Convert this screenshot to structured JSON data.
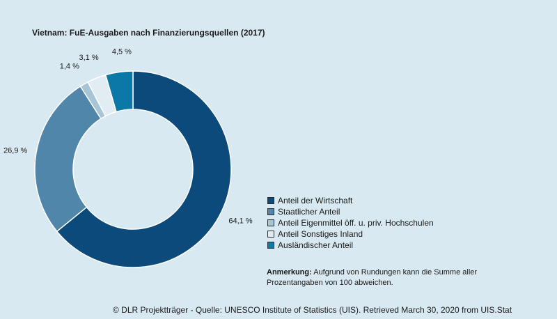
{
  "chart_data": {
    "type": "donut",
    "title": "Vietnam: FuE-Ausgaben nach Finanzierungsquellen (2017)",
    "categories": [
      "Anteil der Wirtschaft",
      "Staatlicher Anteil",
      "Anteil Eigenmittel öff. u. priv. Hochschulen",
      "Anteil Sonstiges Inland",
      "Ausländischer Anteil"
    ],
    "values": [
      64.1,
      26.9,
      1.4,
      3.1,
      4.5
    ],
    "value_labels": [
      "64,1 %",
      "26,9 %",
      "1,4 %",
      "3,1 %",
      "4,5 %"
    ],
    "colors": [
      "#0d4a7c",
      "#4f86aa",
      "#a6c5d6",
      "#e2edf3",
      "#0b78a8"
    ],
    "legend_position": "right"
  },
  "note": {
    "label": "Anmerkung:",
    "text": " Aufgrund von Rundungen kann die Summe aller Prozentangaben von 100 abweichen."
  },
  "source": "© DLR Projektträger - Quelle: UNESCO Institute of Statistics (UIS). Retrieved March 30, 2020 from UIS.Stat"
}
